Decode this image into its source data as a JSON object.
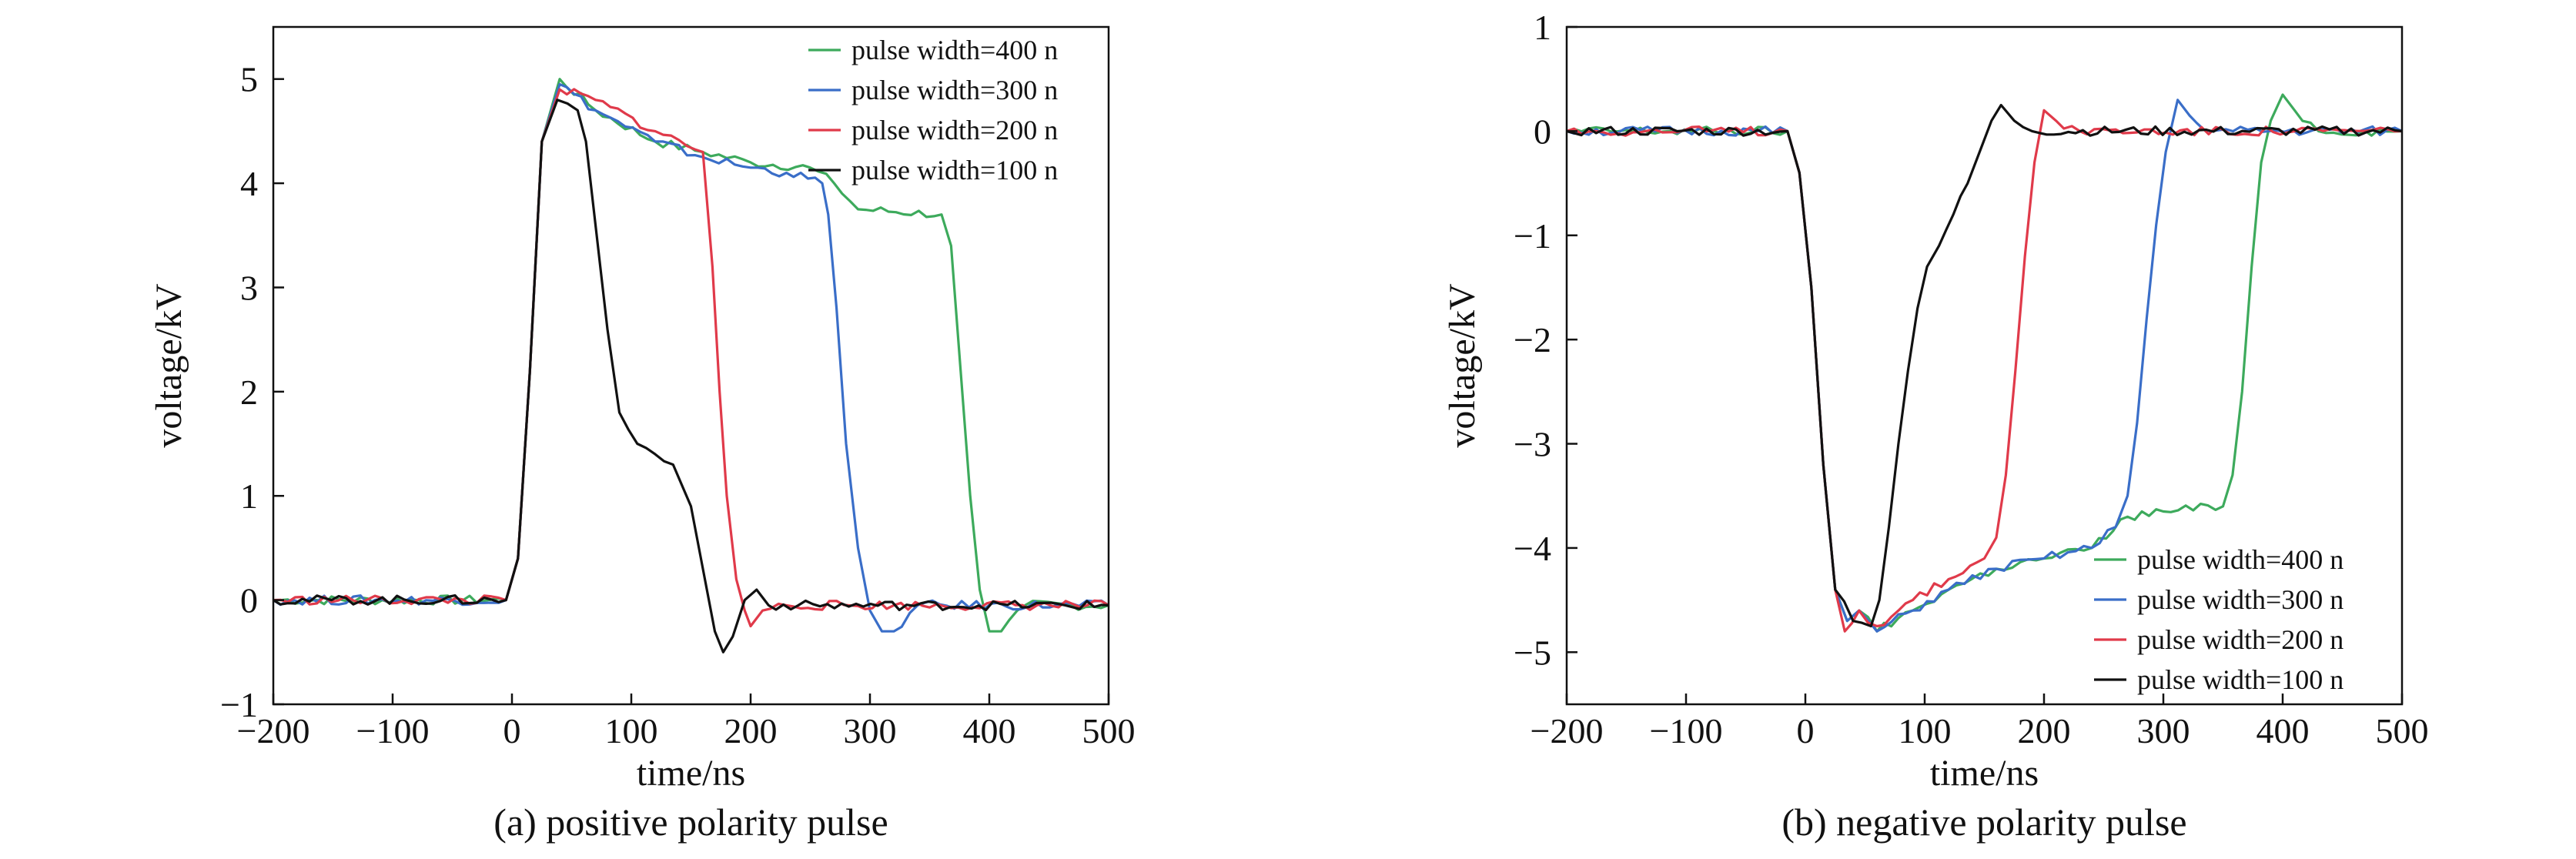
{
  "chart_data": [
    {
      "id": "a",
      "type": "line",
      "title": "(a) positive polarity pulse",
      "xlabel": "time/ns",
      "ylabel": "voltage/kV",
      "xlim": [
        -200,
        500
      ],
      "ylim": [
        -1,
        5.5
      ],
      "xticks": [
        -200,
        -100,
        0,
        100,
        200,
        300,
        400,
        500
      ],
      "xtick_labels": [
        "−200",
        "−100",
        "0",
        "100",
        "200",
        "300",
        "400",
        "500"
      ],
      "yticks": [
        -1,
        0,
        1,
        2,
        3,
        4,
        5
      ],
      "ytick_labels": [
        "−1",
        "0",
        "1",
        "2",
        "3",
        "4",
        "5"
      ],
      "legend_position": "top-right",
      "series": [
        {
          "name": "pulse width=400 n",
          "color": "#3daa5c",
          "x": [
            -200,
            -5,
            5,
            15,
            25,
            40,
            70,
            120,
            160,
            200,
            250,
            270,
            290,
            360,
            368,
            376,
            384,
            392,
            400,
            410,
            430,
            500
          ],
          "y": [
            0,
            0,
            0.4,
            2.2,
            4.4,
            5.0,
            4.7,
            4.4,
            4.3,
            4.2,
            4.15,
            4.0,
            3.75,
            3.7,
            3.4,
            2.2,
            1.0,
            0.1,
            -0.3,
            -0.3,
            -0.05,
            -0.05
          ]
        },
        {
          "name": "pulse width=300 n",
          "color": "#3a6ec8",
          "x": [
            -200,
            -5,
            5,
            15,
            25,
            40,
            70,
            120,
            160,
            200,
            230,
            260,
            265,
            272,
            280,
            290,
            300,
            310,
            320,
            340,
            500
          ],
          "y": [
            0,
            0,
            0.4,
            2.2,
            4.4,
            4.95,
            4.7,
            4.4,
            4.25,
            4.15,
            4.1,
            4.0,
            3.7,
            2.8,
            1.5,
            0.5,
            -0.1,
            -0.3,
            -0.3,
            -0.05,
            -0.05
          ]
        },
        {
          "name": "pulse width=200 n",
          "color": "#e03a4a",
          "x": [
            -200,
            -5,
            5,
            15,
            25,
            40,
            70,
            120,
            160,
            168,
            174,
            180,
            188,
            195,
            200,
            210,
            230,
            500
          ],
          "y": [
            0,
            0,
            0.4,
            2.2,
            4.4,
            4.9,
            4.8,
            4.5,
            4.3,
            3.2,
            2.0,
            1.0,
            0.2,
            -0.1,
            -0.25,
            -0.1,
            -0.05,
            -0.05
          ]
        },
        {
          "name": "pulse width=100 n",
          "color": "#111111",
          "x": [
            -200,
            -5,
            5,
            15,
            25,
            38,
            55,
            62,
            70,
            80,
            90,
            105,
            120,
            135,
            150,
            160,
            170,
            177,
            185,
            195,
            205,
            215,
            240,
            500
          ],
          "y": [
            0,
            0,
            0.4,
            2.2,
            4.4,
            4.8,
            4.7,
            4.4,
            3.6,
            2.6,
            1.8,
            1.5,
            1.4,
            1.3,
            0.9,
            0.3,
            -0.3,
            -0.5,
            -0.35,
            0.0,
            0.1,
            -0.05,
            -0.05,
            -0.05
          ]
        }
      ]
    },
    {
      "id": "b",
      "type": "line",
      "title": "(b) negative polarity pulse",
      "xlabel": "time/ns",
      "ylabel": "voltage/kV",
      "xlim": [
        -200,
        500
      ],
      "ylim": [
        -5.5,
        1
      ],
      "xticks": [
        -200,
        -100,
        0,
        100,
        200,
        300,
        400,
        500
      ],
      "xtick_labels": [
        "−200",
        "−100",
        "0",
        "100",
        "200",
        "300",
        "400",
        "500"
      ],
      "yticks": [
        -5,
        -4,
        -3,
        -2,
        -1,
        0,
        1
      ],
      "ytick_labels": [
        "−5",
        "−4",
        "−3",
        "−2",
        "−1",
        "0",
        "1"
      ],
      "legend_position": "bottom-right",
      "series": [
        {
          "name": "pulse width=400 n",
          "color": "#3daa5c",
          "x": [
            -200,
            -15,
            -5,
            5,
            15,
            25,
            35,
            45,
            60,
            90,
            120,
            160,
            200,
            240,
            270,
            300,
            350,
            358,
            366,
            374,
            382,
            390,
            400,
            410,
            430,
            500
          ],
          "y": [
            0,
            0,
            -0.4,
            -1.5,
            -3.2,
            -4.4,
            -4.7,
            -4.6,
            -4.8,
            -4.6,
            -4.4,
            -4.2,
            -4.1,
            -4.0,
            -3.7,
            -3.65,
            -3.6,
            -3.3,
            -2.5,
            -1.3,
            -0.3,
            0.1,
            0.35,
            0.2,
            0.0,
            0.0
          ]
        },
        {
          "name": "pulse width=300 n",
          "color": "#3a6ec8",
          "x": [
            -200,
            -15,
            -5,
            5,
            15,
            25,
            35,
            45,
            60,
            90,
            120,
            160,
            200,
            240,
            260,
            270,
            278,
            286,
            294,
            302,
            312,
            322,
            340,
            500
          ],
          "y": [
            0,
            0,
            -0.4,
            -1.5,
            -3.2,
            -4.4,
            -4.7,
            -4.6,
            -4.8,
            -4.6,
            -4.4,
            -4.2,
            -4.1,
            -4.0,
            -3.8,
            -3.5,
            -2.8,
            -1.8,
            -0.9,
            -0.2,
            0.3,
            0.15,
            0.0,
            0.0
          ]
        },
        {
          "name": "pulse width=200 n",
          "color": "#e03a4a",
          "x": [
            -200,
            -15,
            -5,
            5,
            15,
            25,
            33,
            45,
            60,
            90,
            120,
            150,
            160,
            168,
            176,
            184,
            192,
            200,
            210,
            230,
            500
          ],
          "y": [
            0,
            0,
            -0.4,
            -1.5,
            -3.2,
            -4.4,
            -4.8,
            -4.6,
            -4.75,
            -4.5,
            -4.3,
            -4.1,
            -3.9,
            -3.3,
            -2.3,
            -1.2,
            -0.3,
            0.2,
            0.1,
            0.0,
            0.0
          ]
        },
        {
          "name": "pulse width=100 n",
          "color": "#111111",
          "x": [
            -200,
            -15,
            -5,
            5,
            15,
            25,
            40,
            55,
            62,
            70,
            78,
            86,
            94,
            102,
            112,
            124,
            136,
            146,
            156,
            164,
            175,
            190,
            500
          ],
          "y": [
            0,
            0,
            -0.4,
            -1.5,
            -3.2,
            -4.4,
            -4.7,
            -4.75,
            -4.5,
            -3.8,
            -3.0,
            -2.3,
            -1.7,
            -1.3,
            -1.1,
            -0.8,
            -0.5,
            -0.2,
            0.1,
            0.25,
            0.1,
            0.0,
            0.0
          ]
        }
      ]
    }
  ]
}
